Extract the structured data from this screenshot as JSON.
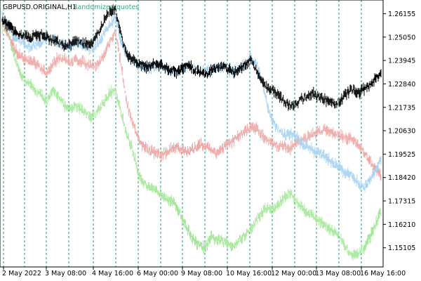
{
  "chart_data": {
    "type": "bar",
    "title_left": "GBPUSD.ORIGINAL,H1",
    "title_right": "Randomized quotes",
    "colors": {
      "original": "#000000",
      "series1": "#a9d3ef",
      "series2": "#ecaaa8",
      "series3": "#a6e89a",
      "title_right": "#3aa687",
      "grid": "#2e8b7d",
      "axis": "#000000"
    },
    "ylim": [
      1.142,
      1.268
    ],
    "y_ticks": [
      "1.26155",
      "1.25050",
      "1.23945",
      "1.22840",
      "1.21735",
      "1.20630",
      "1.19525",
      "1.18420",
      "1.17315",
      "1.16210",
      "1.15105"
    ],
    "x_ticks": [
      "2 May 2022",
      "3 May 08:00",
      "4 May 16:00",
      "6 May 00:00",
      "9 May 08:00",
      "10 May 16:00",
      "12 May 00:00",
      "13 May 08:00",
      "16 May 16:00"
    ],
    "series": [
      {
        "key": "series3",
        "values": [
          1.255,
          1.253,
          1.242,
          1.235,
          1.23,
          1.228,
          1.225,
          1.223,
          1.22,
          1.225,
          1.223,
          1.218,
          1.216,
          1.218,
          1.217,
          1.214,
          1.213,
          1.216,
          1.22,
          1.224,
          1.225,
          1.215,
          1.205,
          1.198,
          1.187,
          1.182,
          1.179,
          1.178,
          1.177,
          1.175,
          1.173,
          1.17,
          1.164,
          1.159,
          1.154,
          1.152,
          1.151,
          1.156,
          1.155,
          1.154,
          1.153,
          1.152,
          1.155,
          1.157,
          1.16,
          1.164,
          1.168,
          1.17,
          1.169,
          1.172,
          1.175,
          1.177,
          1.173,
          1.17,
          1.168,
          1.166,
          1.164,
          1.162,
          1.16,
          1.158,
          1.155,
          1.15,
          1.147,
          1.148,
          1.151,
          1.156,
          1.162,
          1.168
        ]
      },
      {
        "key": "series2",
        "values": [
          1.257,
          1.252,
          1.246,
          1.242,
          1.24,
          1.239,
          1.238,
          1.235,
          1.233,
          1.238,
          1.241,
          1.24,
          1.238,
          1.24,
          1.239,
          1.238,
          1.237,
          1.238,
          1.242,
          1.248,
          1.253,
          1.238,
          1.22,
          1.21,
          1.203,
          1.199,
          1.197,
          1.196,
          1.195,
          1.196,
          1.198,
          1.199,
          1.197,
          1.196,
          1.198,
          1.2,
          1.199,
          1.197,
          1.196,
          1.198,
          1.2,
          1.202,
          1.204,
          1.206,
          1.208,
          1.207,
          1.204,
          1.202,
          1.2,
          1.199,
          1.199,
          1.198,
          1.201,
          1.202,
          1.203,
          1.205,
          1.206,
          1.207,
          1.206,
          1.205,
          1.204,
          1.203,
          1.202,
          1.2,
          1.196,
          1.192,
          1.188,
          1.185
        ]
      },
      {
        "key": "series1",
        "values": [
          1.26,
          1.256,
          1.251,
          1.249,
          1.247,
          1.246,
          1.247,
          1.248,
          1.25,
          1.249,
          1.248,
          1.247,
          1.246,
          1.248,
          1.247,
          1.246,
          1.245,
          1.247,
          1.252,
          1.256,
          1.26,
          1.249,
          1.242,
          1.24,
          1.237,
          1.236,
          1.235,
          1.237,
          1.238,
          1.236,
          1.235,
          1.234,
          1.236,
          1.237,
          1.235,
          1.234,
          1.234,
          1.235,
          1.236,
          1.237,
          1.235,
          1.234,
          1.235,
          1.238,
          1.241,
          1.238,
          1.23,
          1.218,
          1.21,
          1.206,
          1.204,
          1.205,
          1.204,
          1.2,
          1.199,
          1.197,
          1.196,
          1.194,
          1.192,
          1.19,
          1.188,
          1.186,
          1.185,
          1.182,
          1.179,
          1.183,
          1.188,
          1.192
        ]
      },
      {
        "key": "original",
        "values": [
          1.259,
          1.256,
          1.254,
          1.252,
          1.251,
          1.25,
          1.251,
          1.252,
          1.25,
          1.249,
          1.248,
          1.246,
          1.247,
          1.249,
          1.248,
          1.247,
          1.248,
          1.252,
          1.258,
          1.262,
          1.264,
          1.252,
          1.242,
          1.24,
          1.238,
          1.237,
          1.236,
          1.238,
          1.237,
          1.236,
          1.235,
          1.234,
          1.236,
          1.237,
          1.235,
          1.234,
          1.233,
          1.235,
          1.236,
          1.237,
          1.235,
          1.234,
          1.235,
          1.238,
          1.24,
          1.235,
          1.229,
          1.226,
          1.225,
          1.223,
          1.22,
          1.218,
          1.219,
          1.221,
          1.223,
          1.224,
          1.222,
          1.221,
          1.22,
          1.219,
          1.221,
          1.224,
          1.226,
          1.224,
          1.226,
          1.228,
          1.231,
          1.233
        ]
      }
    ],
    "original_end_index": 67,
    "grid_vertical": "dashed",
    "legend": "top-left"
  }
}
